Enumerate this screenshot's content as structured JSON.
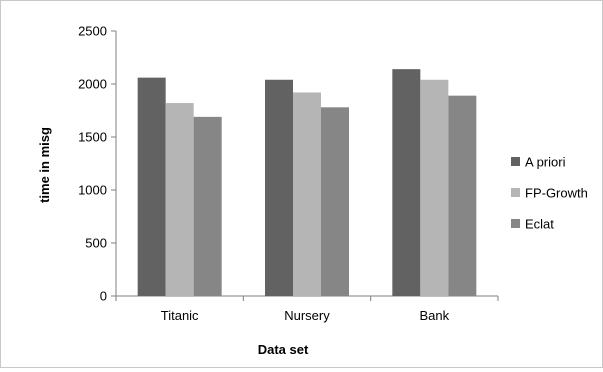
{
  "chart_data": {
    "type": "bar",
    "title": "",
    "xlabel": "Data set",
    "ylabel": "time in misg",
    "categories": [
      "Titanic",
      "Nursery",
      "Bank"
    ],
    "series": [
      {
        "name": "A priori",
        "values": [
          2060,
          2040,
          2140
        ],
        "color": "#626262"
      },
      {
        "name": "FP-Growth",
        "values": [
          1820,
          1920,
          2040
        ],
        "color": "#b5b5b5"
      },
      {
        "name": "Eclat",
        "values": [
          1690,
          1780,
          1890
        ],
        "color": "#868686"
      }
    ],
    "ylim": [
      0,
      2500
    ],
    "yticks": [
      0,
      500,
      1000,
      1500,
      2000,
      2500
    ],
    "grid": false,
    "legend_position": "right"
  }
}
